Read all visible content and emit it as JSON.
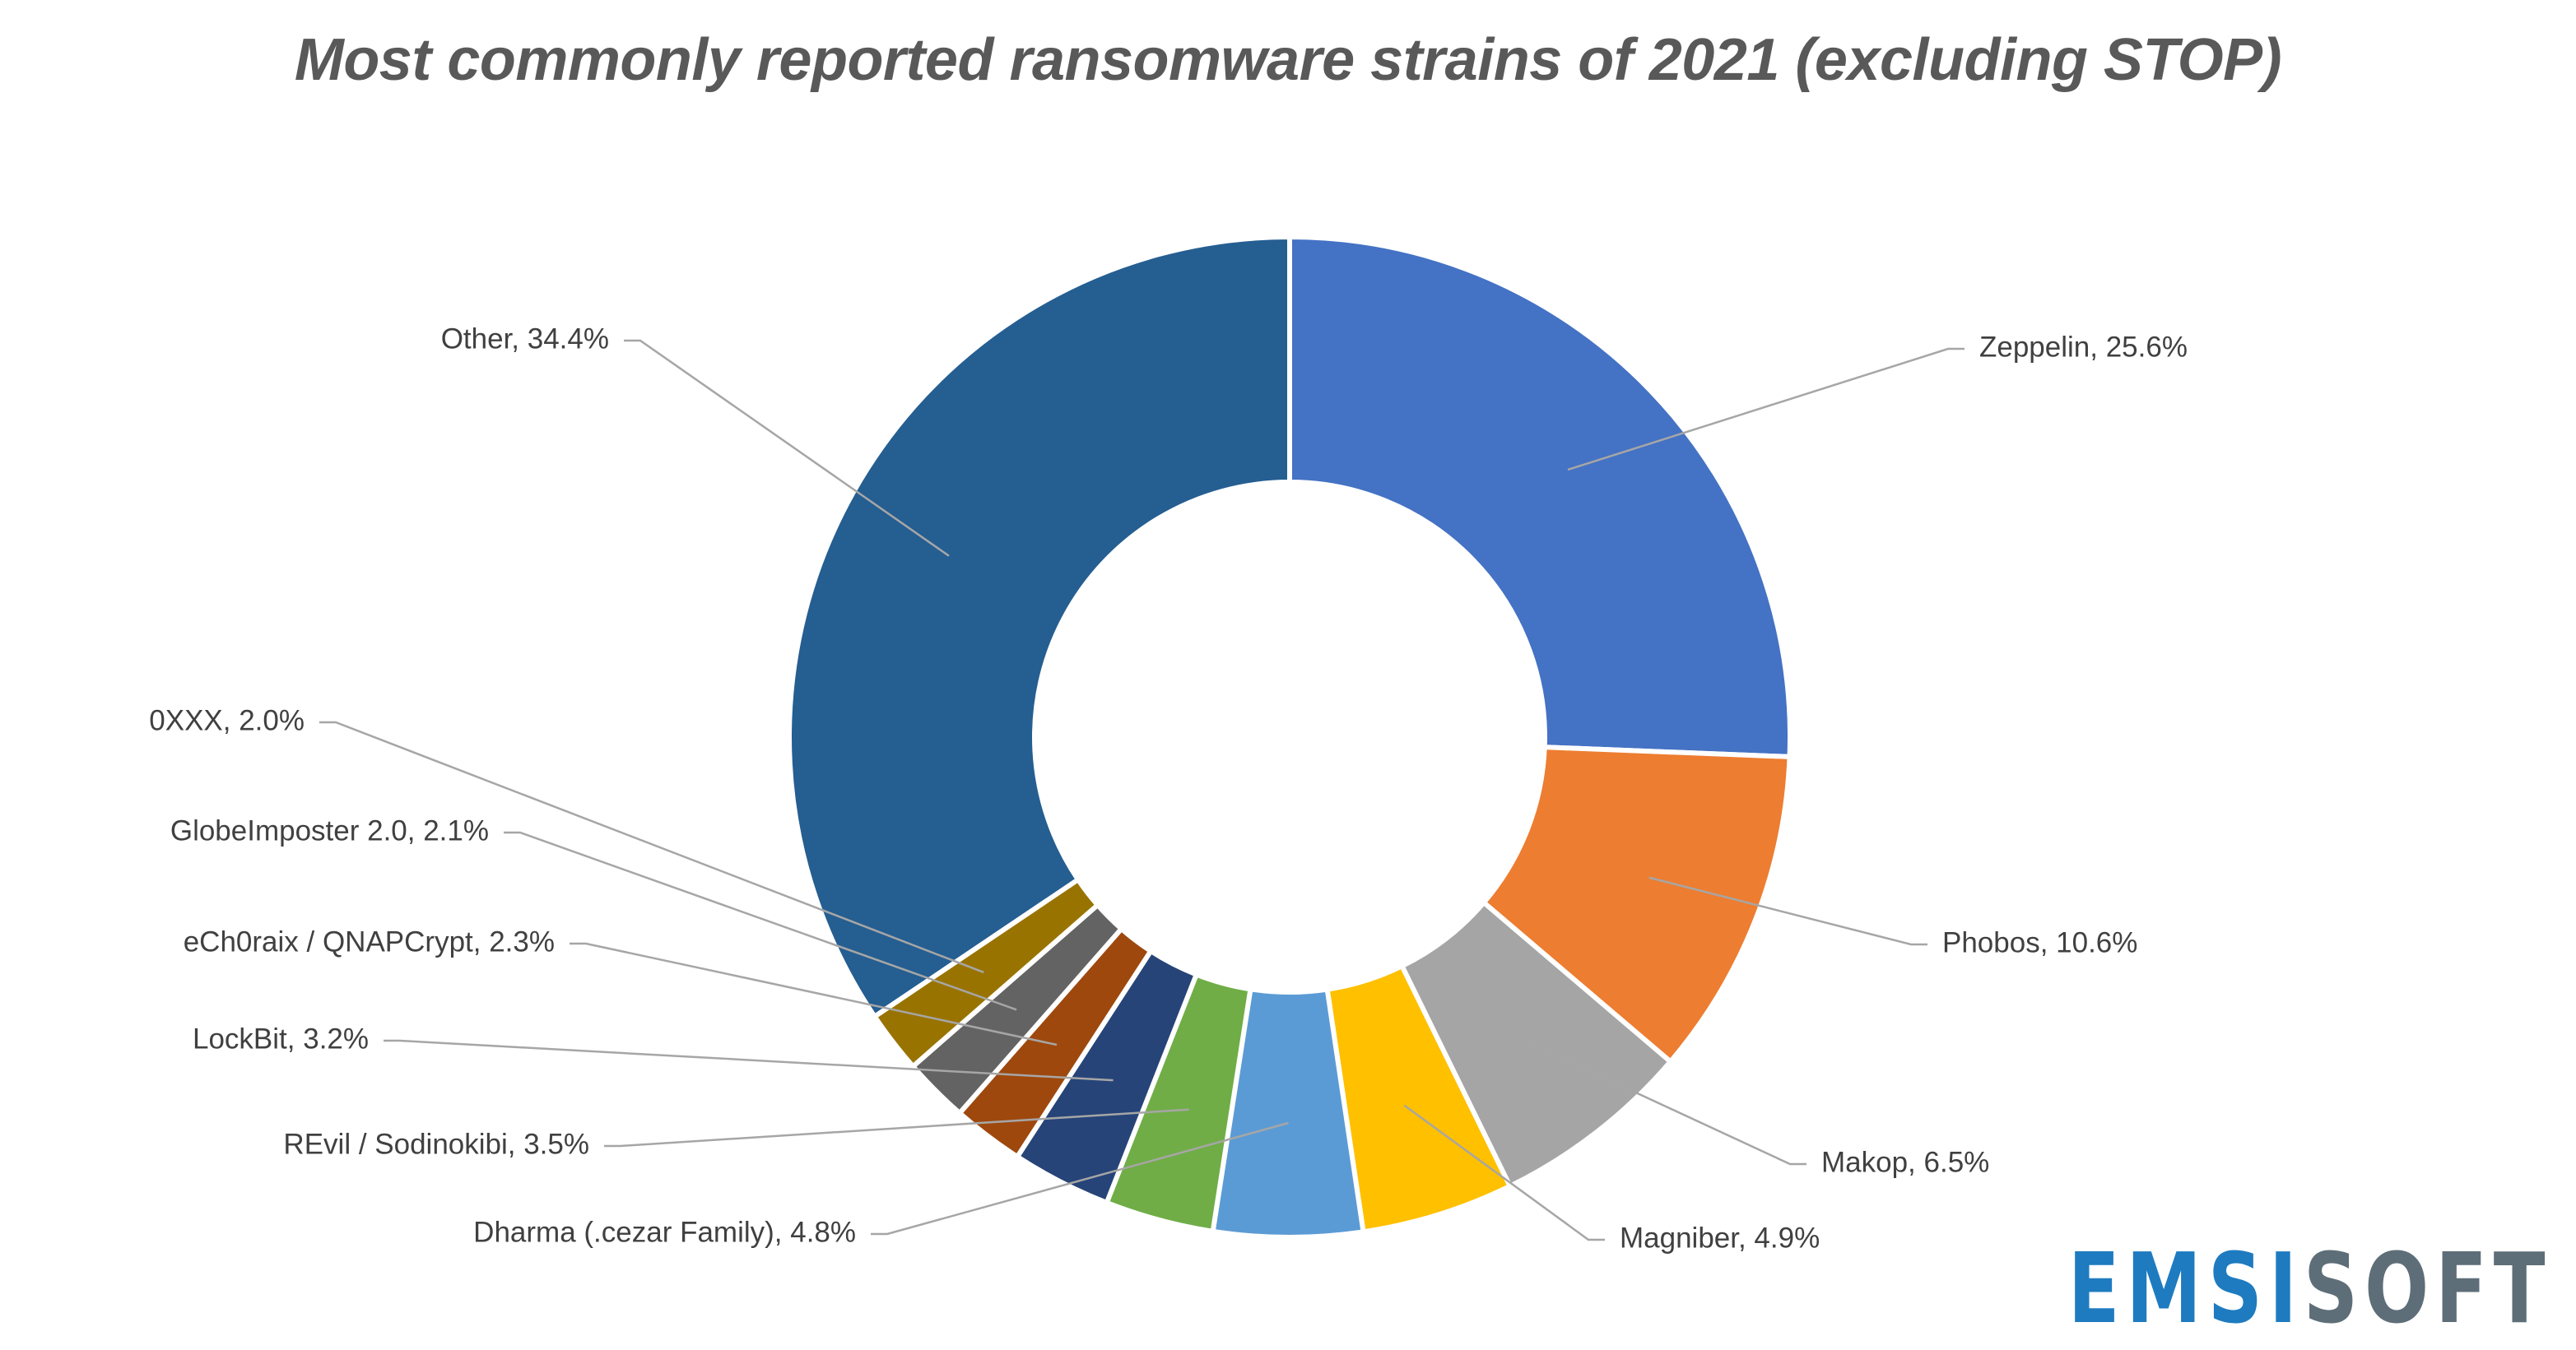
{
  "chart_data": {
    "type": "pie",
    "title": "Most commonly reported ransomware strains of 2021 (excluding STOP)",
    "donut": true,
    "start_angle_deg": 0,
    "direction": "clockwise",
    "slices": [
      {
        "label": "Zeppelin",
        "value": 25.6,
        "display": "Zeppelin, 25.6%",
        "color": "#4472C4",
        "label_side": "right"
      },
      {
        "label": "Phobos",
        "value": 10.6,
        "display": "Phobos, 10.6%",
        "color": "#ED7D31",
        "label_side": "right"
      },
      {
        "label": "Makop",
        "value": 6.5,
        "display": "Makop, 6.5%",
        "color": "#A5A5A5",
        "label_side": "right"
      },
      {
        "label": "Magniber",
        "value": 4.9,
        "display": "Magniber, 4.9%",
        "color": "#FFC000",
        "label_side": "right"
      },
      {
        "label": "Dharma (.cezar Family)",
        "value": 4.8,
        "display": "Dharma (.cezar Family), 4.8%",
        "color": "#5B9BD5",
        "label_side": "left"
      },
      {
        "label": "REvil / Sodinokibi",
        "value": 3.5,
        "display": "REvil / Sodinokibi, 3.5%",
        "color": "#70AD47",
        "label_side": "left"
      },
      {
        "label": "LockBit",
        "value": 3.2,
        "display": "LockBit, 3.2%",
        "color": "#264478",
        "label_side": "left"
      },
      {
        "label": "eCh0raix / QNAPCrypt",
        "value": 2.3,
        "display": "eCh0raix / QNAPCrypt, 2.3%",
        "color": "#9E480E",
        "label_side": "left"
      },
      {
        "label": "GlobeImposter 2.0",
        "value": 2.1,
        "display": "GlobeImposter 2.0, 2.1%",
        "color": "#636363",
        "label_side": "left"
      },
      {
        "label": "0XXX",
        "value": 2.0,
        "display": "0XXX, 2.0%",
        "color": "#997300",
        "label_side": "left"
      },
      {
        "label": "Other",
        "value": 34.4,
        "display": "Other, 34.4%",
        "color": "#255E91",
        "label_side": "left"
      }
    ]
  },
  "brand": {
    "part1": "EMSI",
    "part2": "SOFT",
    "color1": "#1E7BC0",
    "color2": "#5E6E78"
  }
}
